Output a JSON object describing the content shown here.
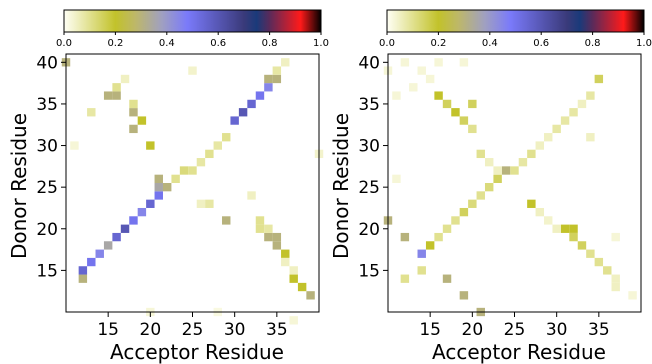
{
  "chart_data": [
    {
      "type": "heatmap",
      "xlabel": "Acceptor Residue",
      "ylabel": "Donor Residue",
      "xlim": [
        10,
        40
      ],
      "ylim": [
        10,
        41
      ],
      "x_ticks": [
        "15",
        "20",
        "25",
        "30",
        "35"
      ],
      "y_ticks": [
        "15",
        "20",
        "25",
        "30",
        "35",
        "40"
      ],
      "colorbar": {
        "range": [
          0.0,
          1.0
        ],
        "ticks": [
          "0.0",
          "0.2",
          "0.4",
          "0.6",
          "0.8",
          "1.0"
        ],
        "position": "top"
      },
      "cells": [
        [
          10,
          40,
          0.3
        ],
        [
          12,
          14,
          0.3
        ],
        [
          12,
          15,
          0.55
        ],
        [
          13,
          16,
          0.5
        ],
        [
          14,
          17,
          0.45
        ],
        [
          15,
          18,
          0.35
        ],
        [
          16,
          19,
          0.55
        ],
        [
          17,
          20,
          0.6
        ],
        [
          18,
          21,
          0.5
        ],
        [
          19,
          22,
          0.45
        ],
        [
          20,
          23,
          0.55
        ],
        [
          21,
          24,
          0.5
        ],
        [
          21,
          25,
          0.35
        ],
        [
          21,
          26,
          0.3
        ],
        [
          22,
          25,
          0.3
        ],
        [
          23,
          26,
          0.1
        ],
        [
          24,
          27,
          0.12
        ],
        [
          25,
          27,
          0.1
        ],
        [
          26,
          28,
          0.08
        ],
        [
          27,
          29,
          0.1
        ],
        [
          28,
          30,
          0.08
        ],
        [
          29,
          31,
          0.1
        ],
        [
          30,
          33,
          0.55
        ],
        [
          31,
          34,
          0.6
        ],
        [
          32,
          35,
          0.55
        ],
        [
          33,
          36,
          0.5
        ],
        [
          34,
          37,
          0.45
        ],
        [
          35,
          38,
          0.3
        ],
        [
          34,
          38,
          0.3
        ],
        [
          15,
          36,
          0.3
        ],
        [
          16,
          36,
          0.3
        ],
        [
          16,
          37,
          0.1
        ],
        [
          18,
          34,
          0.3
        ],
        [
          18,
          32,
          0.3
        ],
        [
          19,
          33,
          0.2
        ],
        [
          18,
          35,
          0.1
        ],
        [
          20,
          30,
          0.2
        ],
        [
          13,
          34,
          0.08
        ],
        [
          17,
          38,
          0.05
        ],
        [
          25,
          39,
          0.04
        ],
        [
          35,
          39,
          0.08
        ],
        [
          36,
          40,
          0.05
        ],
        [
          29,
          21,
          0.3
        ],
        [
          34,
          19,
          0.3
        ],
        [
          35,
          19,
          0.3
        ],
        [
          35,
          18,
          0.3
        ],
        [
          36,
          17,
          0.2
        ],
        [
          37,
          14,
          0.2
        ],
        [
          38,
          13,
          0.2
        ],
        [
          39,
          12,
          0.3
        ],
        [
          33,
          20,
          0.1
        ],
        [
          33,
          21,
          0.1
        ],
        [
          34,
          20,
          0.08
        ],
        [
          37,
          15,
          0.05
        ],
        [
          36,
          16,
          0.05
        ],
        [
          26,
          23,
          0.05
        ],
        [
          27,
          23,
          0.08
        ],
        [
          32,
          24,
          0.05
        ],
        [
          37,
          9,
          0.03
        ],
        [
          11,
          30,
          0.03
        ],
        [
          20,
          10,
          0.03
        ],
        [
          28,
          10,
          0.02
        ],
        [
          40,
          29,
          0.04
        ]
      ]
    },
    {
      "type": "heatmap",
      "xlabel": "Acceptor Residue",
      "ylabel": "Donor Residue",
      "xlim": [
        10,
        40
      ],
      "ylim": [
        10,
        41
      ],
      "x_ticks": [
        "15",
        "20",
        "25",
        "30",
        "35"
      ],
      "y_ticks": [
        "15",
        "20",
        "25",
        "30",
        "35",
        "40"
      ],
      "colorbar": {
        "range": [
          0.0,
          1.0
        ],
        "ticks": [
          "0.0",
          "0.2",
          "0.4",
          "0.6",
          "0.8",
          "1.0"
        ],
        "position": "top"
      },
      "cells": [
        [
          10,
          21,
          0.3
        ],
        [
          12,
          19,
          0.3
        ],
        [
          12,
          14,
          0.1
        ],
        [
          14,
          15,
          0.1
        ],
        [
          14,
          17,
          0.45
        ],
        [
          15,
          18,
          0.2
        ],
        [
          16,
          19,
          0.1
        ],
        [
          17,
          14,
          0.3
        ],
        [
          19,
          12,
          0.3
        ],
        [
          21,
          10,
          0.3
        ],
        [
          17,
          20,
          0.1
        ],
        [
          18,
          21,
          0.1
        ],
        [
          19,
          22,
          0.15
        ],
        [
          20,
          23,
          0.12
        ],
        [
          21,
          24,
          0.1
        ],
        [
          22,
          25,
          0.12
        ],
        [
          23,
          26,
          0.15
        ],
        [
          24,
          27,
          0.3
        ],
        [
          25,
          27,
          0.1
        ],
        [
          26,
          28,
          0.08
        ],
        [
          27,
          29,
          0.1
        ],
        [
          28,
          30,
          0.05
        ],
        [
          29,
          31,
          0.05
        ],
        [
          30,
          32,
          0.08
        ],
        [
          31,
          33,
          0.08
        ],
        [
          32,
          34,
          0.08
        ],
        [
          33,
          35,
          0.05
        ],
        [
          34,
          36,
          0.08
        ],
        [
          35,
          38,
          0.15
        ],
        [
          16,
          36,
          0.2
        ],
        [
          17,
          35,
          0.15
        ],
        [
          18,
          34,
          0.2
        ],
        [
          19,
          33,
          0.15
        ],
        [
          20,
          35,
          0.15
        ],
        [
          20,
          32,
          0.1
        ],
        [
          21,
          29,
          0.1
        ],
        [
          22,
          28,
          0.05
        ],
        [
          23,
          27,
          0.05
        ],
        [
          27,
          23,
          0.2
        ],
        [
          28,
          22,
          0.05
        ],
        [
          31,
          20,
          0.2
        ],
        [
          32,
          20,
          0.2
        ],
        [
          32,
          19,
          0.15
        ],
        [
          33,
          18,
          0.15
        ],
        [
          34,
          17,
          0.1
        ],
        [
          35,
          16,
          0.1
        ],
        [
          36,
          15,
          0.1
        ],
        [
          37,
          14,
          0.05
        ],
        [
          37,
          13,
          0.05
        ],
        [
          34,
          31,
          0.05
        ],
        [
          14,
          39,
          0.03
        ],
        [
          15,
          38,
          0.03
        ],
        [
          16,
          40,
          0.03
        ],
        [
          12,
          40,
          0.03
        ],
        [
          10,
          39,
          0.03
        ],
        [
          19,
          40,
          0.03
        ],
        [
          13,
          37,
          0.03
        ],
        [
          11,
          36,
          0.03
        ],
        [
          30,
          20,
          0.05
        ],
        [
          29,
          21,
          0.04
        ],
        [
          39,
          12,
          0.03
        ],
        [
          37,
          19,
          0.03
        ],
        [
          11,
          26,
          0.03
        ]
      ]
    }
  ]
}
